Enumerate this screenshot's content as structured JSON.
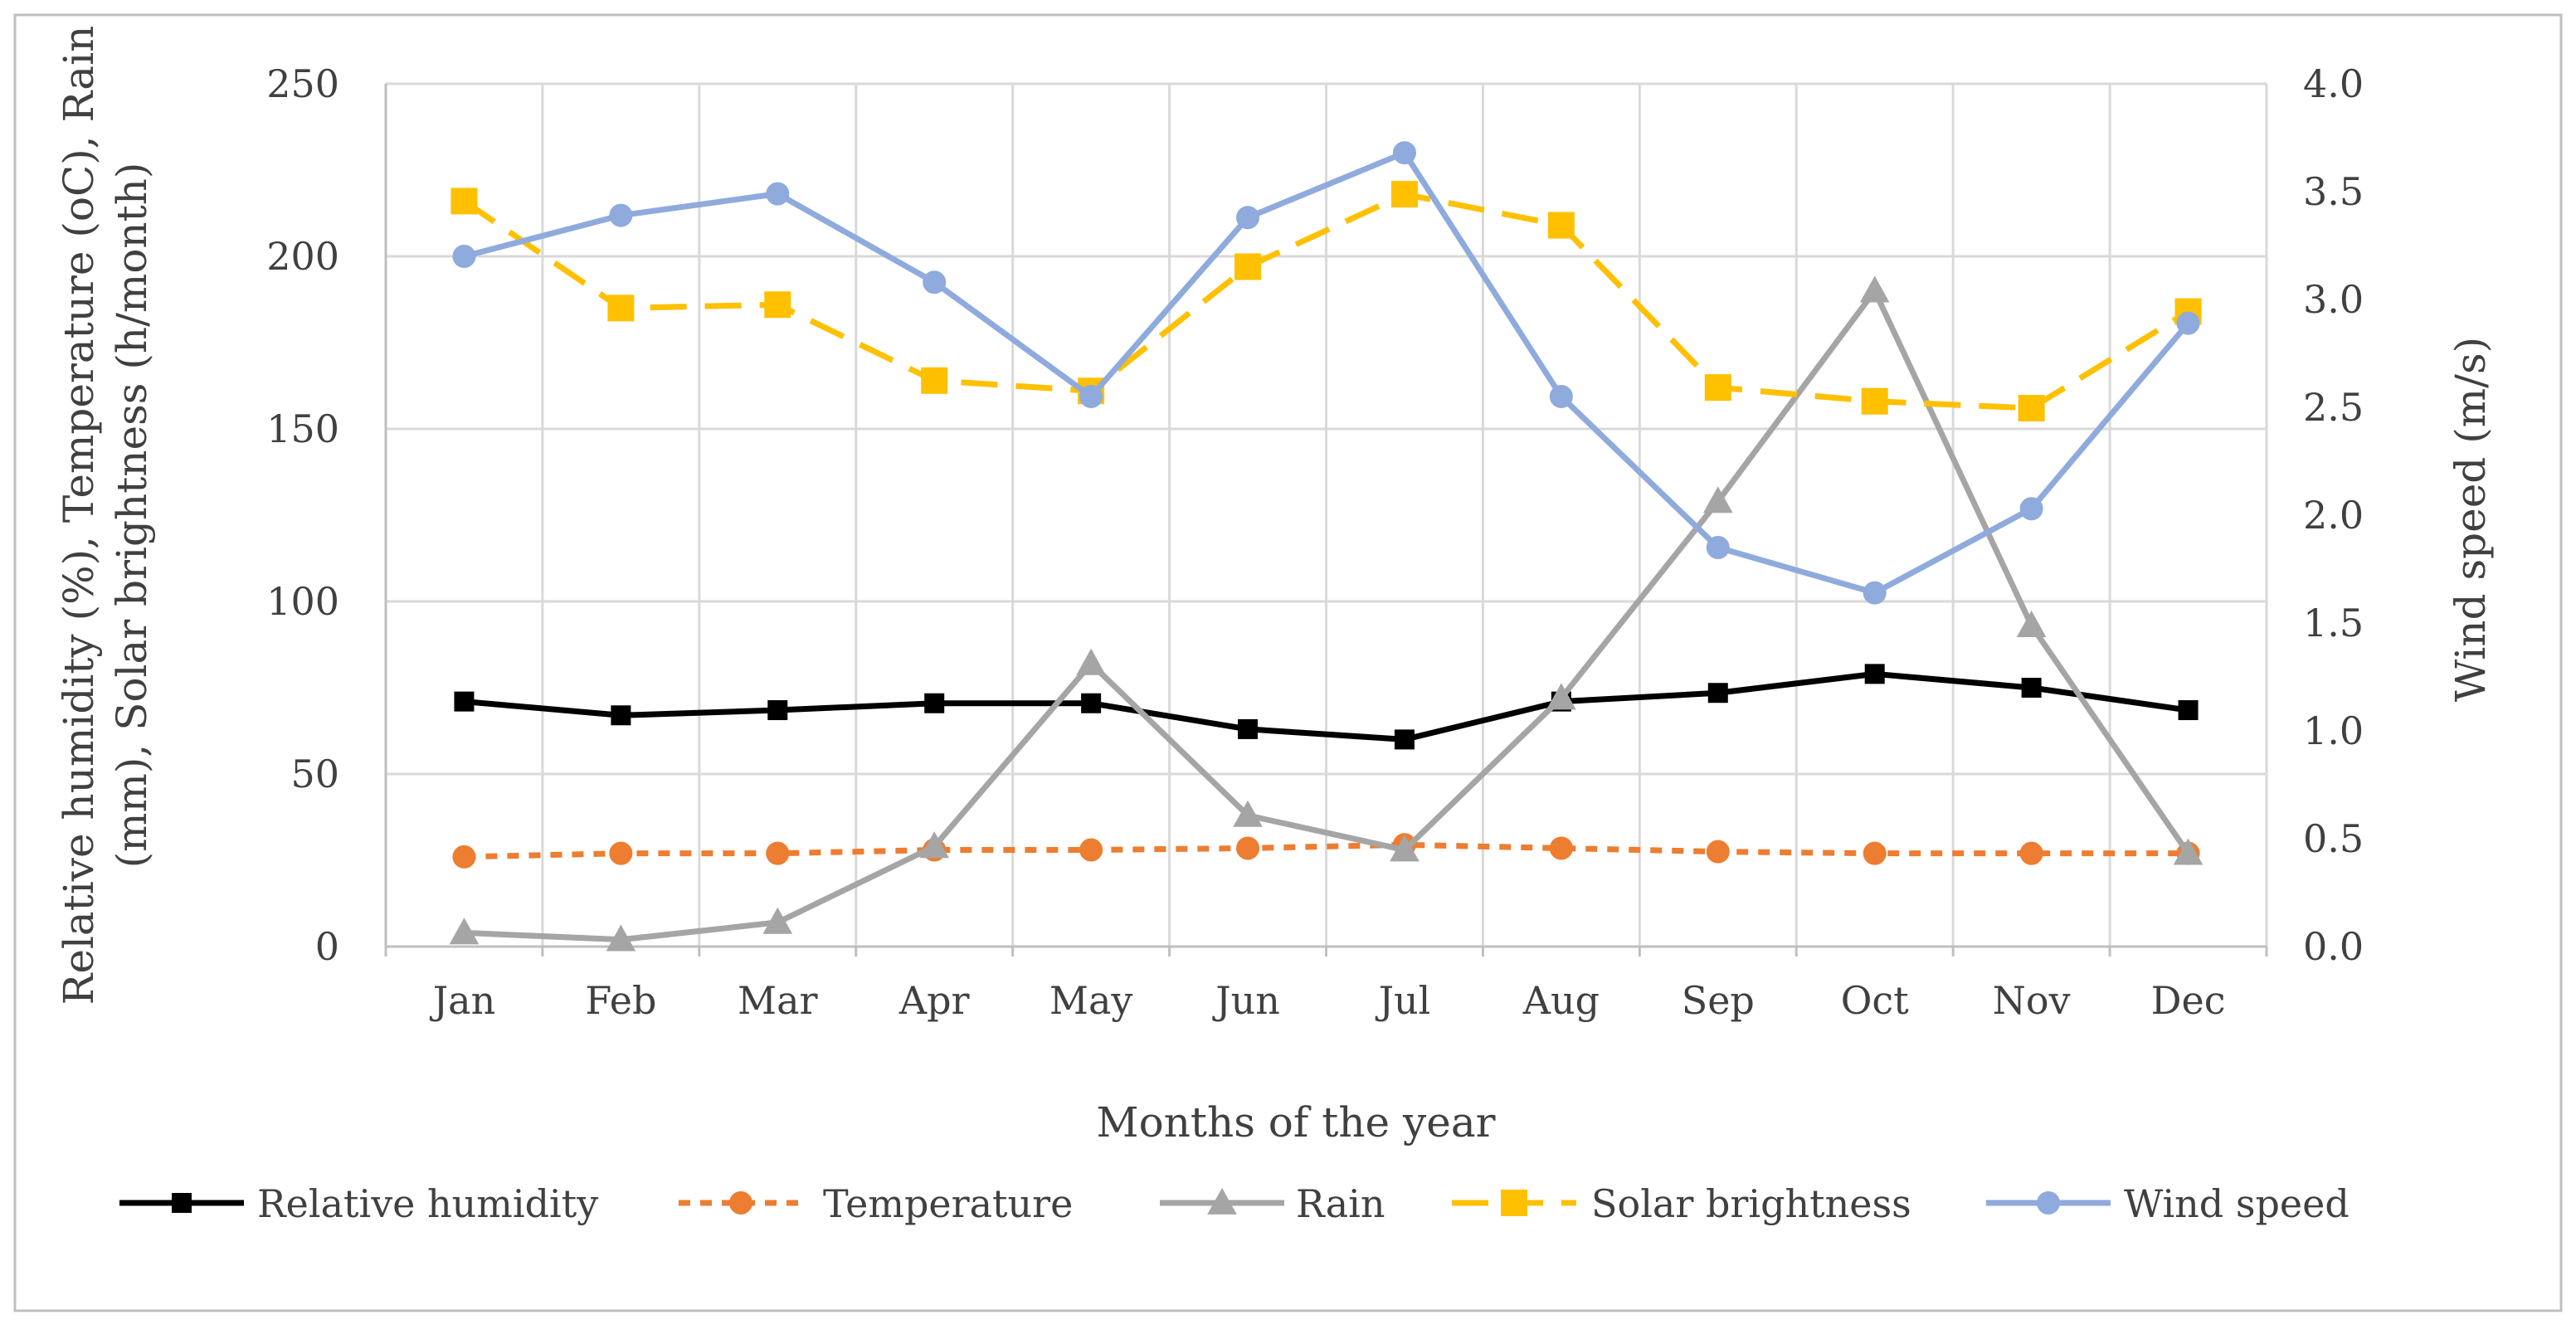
{
  "chart_data": {
    "type": "line",
    "categories": [
      "Jan",
      "Feb",
      "Mar",
      "Apr",
      "May",
      "Jun",
      "Jul",
      "Aug",
      "Sep",
      "Oct",
      "Nov",
      "Dec"
    ],
    "xlabel": "Months of the year",
    "ylabel_left": "Relative humidity (%), Temperature (oC), Rain (mm), Solar brightness (h/month)",
    "ylabel_left_lines": [
      "Relative humidity (%), Temperature (oC), Rain",
      "(mm), Solar brightness (h/month)"
    ],
    "ylabel_right": "Wind speed (m/s)",
    "ylim_left": [
      0,
      250
    ],
    "yticks_left": [
      "0",
      "50",
      "100",
      "150",
      "200",
      "250"
    ],
    "ylim_right": [
      0,
      4
    ],
    "yticks_right": [
      "0.0",
      "0.5",
      "1.0",
      "1.5",
      "2.0",
      "2.5",
      "3.0",
      "3.5",
      "4.0"
    ],
    "grid": true,
    "legend_position": "bottom",
    "series": [
      {
        "name": "Relative humidity",
        "axis": "left",
        "color": "#000000",
        "dash": "solid",
        "marker": "square",
        "values": [
          71,
          67,
          68.5,
          70.5,
          70.5,
          63,
          60,
          71,
          73.5,
          79,
          75,
          68.5
        ]
      },
      {
        "name": "Temperature",
        "axis": "left",
        "color": "#ED7D31",
        "dash": "dash",
        "marker": "circle",
        "values": [
          26,
          27,
          27,
          28,
          28,
          28.5,
          29.5,
          28.5,
          27.5,
          27,
          27,
          27
        ]
      },
      {
        "name": "Rain",
        "axis": "left",
        "color": "#A5A5A5",
        "dash": "solid",
        "marker": "triangle",
        "values": [
          4,
          2,
          7,
          29,
          82,
          38,
          28,
          72,
          129,
          190,
          93,
          27
        ]
      },
      {
        "name": "Solar brightness",
        "axis": "left",
        "color": "#FFC000",
        "dash": "longdash",
        "marker": "square",
        "values": [
          216,
          185,
          186,
          164,
          161,
          197,
          218,
          209,
          162,
          158,
          156,
          184
        ]
      },
      {
        "name": "Wind speed",
        "axis": "right",
        "color": "#8FAADC",
        "dash": "solid",
        "marker": "circle",
        "values": [
          3.2,
          3.39,
          3.49,
          3.08,
          2.55,
          3.38,
          3.68,
          2.55,
          1.85,
          1.64,
          2.03,
          2.89
        ]
      }
    ]
  }
}
